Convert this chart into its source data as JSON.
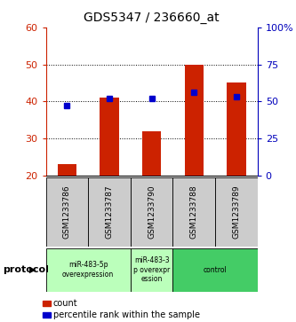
{
  "title": "GDS5347 / 236660_at",
  "samples": [
    "GSM1233786",
    "GSM1233787",
    "GSM1233790",
    "GSM1233788",
    "GSM1233789"
  ],
  "bar_values": [
    23,
    41,
    32,
    50,
    45
  ],
  "bar_bottom": 20,
  "bar_color": "#CC2200",
  "blue_values_pct": [
    47,
    52,
    52,
    56,
    53
  ],
  "left_ylim": [
    20,
    60
  ],
  "right_ylim": [
    0,
    100
  ],
  "left_yticks": [
    20,
    30,
    40,
    50,
    60
  ],
  "right_yticks": [
    0,
    25,
    50,
    75,
    100
  ],
  "right_yticklabels": [
    "0",
    "25",
    "50",
    "75",
    "100%"
  ],
  "dotted_grid_values": [
    30,
    40,
    50
  ],
  "protocol_groups": [
    {
      "label": "miR-483-5p\noverexpression",
      "color": "#bbffbb",
      "span": [
        0,
        2
      ]
    },
    {
      "label": "miR-483-3\np overexpr\nession",
      "color": "#bbffbb",
      "span": [
        2,
        3
      ]
    },
    {
      "label": "control",
      "color": "#44cc66",
      "span": [
        3,
        5
      ]
    }
  ],
  "legend_items": [
    {
      "color": "#CC2200",
      "label": "count"
    },
    {
      "color": "#0000CC",
      "label": "percentile rank within the sample"
    }
  ],
  "protocol_label": "protocol",
  "sample_box_color": "#cccccc"
}
